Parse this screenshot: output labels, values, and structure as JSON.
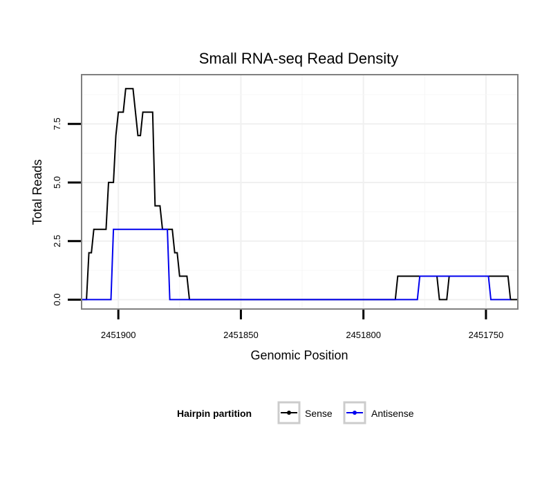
{
  "chart_data": {
    "type": "line",
    "title": "Small RNA-seq Read Density",
    "xlabel": "Genomic Position",
    "ylabel": "Total Reads",
    "x_reversed": true,
    "xlim": [
      2451915,
      2451737
    ],
    "ylim": [
      -0.4,
      9.6
    ],
    "x_ticks": [
      2451900,
      2451850,
      2451800,
      2451750
    ],
    "x_tick_labels": [
      "2451900",
      "2451850",
      "2451800",
      "2451750"
    ],
    "y_ticks": [
      0,
      2.5,
      5,
      7.5
    ],
    "y_tick_labels": [
      "0.0",
      "2.5",
      "5.0",
      "7.5"
    ],
    "grid": true,
    "legend": {
      "title": "Hairpin partition",
      "position": "bottom",
      "entries": [
        "Sense",
        "Antisense"
      ]
    },
    "series": [
      {
        "name": "Sense",
        "color": "#000000",
        "points": [
          [
            2451915,
            0
          ],
          [
            2451913,
            0
          ],
          [
            2451912,
            2
          ],
          [
            2451911,
            2
          ],
          [
            2451910,
            3
          ],
          [
            2451905,
            3
          ],
          [
            2451904,
            5
          ],
          [
            2451902,
            5
          ],
          [
            2451901,
            7
          ],
          [
            2451900,
            8
          ],
          [
            2451898,
            8
          ],
          [
            2451897,
            9
          ],
          [
            2451894,
            9
          ],
          [
            2451892,
            7
          ],
          [
            2451891,
            7
          ],
          [
            2451890,
            8
          ],
          [
            2451886,
            8
          ],
          [
            2451885,
            4
          ],
          [
            2451883,
            4
          ],
          [
            2451882,
            3
          ],
          [
            2451878,
            3
          ],
          [
            2451877,
            2
          ],
          [
            2451876,
            2
          ],
          [
            2451875,
            1
          ],
          [
            2451872,
            1
          ],
          [
            2451871,
            0
          ],
          [
            2451787,
            0
          ],
          [
            2451786,
            1
          ],
          [
            2451770,
            1
          ],
          [
            2451769,
            0
          ],
          [
            2451766,
            0
          ],
          [
            2451765,
            1
          ],
          [
            2451741,
            1
          ],
          [
            2451740,
            0
          ],
          [
            2451737,
            0
          ]
        ]
      },
      {
        "name": "Antisense",
        "color": "#0000ee",
        "points": [
          [
            2451915,
            0
          ],
          [
            2451903,
            0
          ],
          [
            2451902,
            3
          ],
          [
            2451880,
            3
          ],
          [
            2451879,
            0
          ],
          [
            2451871,
            0
          ],
          [
            2451778,
            0
          ],
          [
            2451777,
            1
          ],
          [
            2451749,
            1
          ],
          [
            2451748,
            0
          ],
          [
            2451740,
            0
          ]
        ]
      }
    ]
  }
}
